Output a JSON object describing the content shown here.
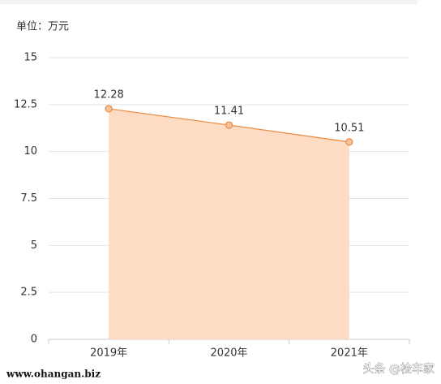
{
  "chart_data": {
    "type": "area",
    "subtitle": "单位：万元",
    "categories": [
      "2019年",
      "2020年",
      "2021年"
    ],
    "series": [
      {
        "name": null,
        "color": "#e8883c",
        "fill": "#fddcc3",
        "values": [
          12.28,
          11.41,
          10.51
        ]
      }
    ],
    "ylim": [
      0,
      15
    ],
    "yticks": [
      0,
      2.5,
      5,
      7.5,
      10,
      12.5,
      15
    ],
    "grid": true,
    "data_labels": true
  },
  "watermarks": {
    "left": "www.ohangan.biz",
    "right": "头条 @检车家"
  }
}
